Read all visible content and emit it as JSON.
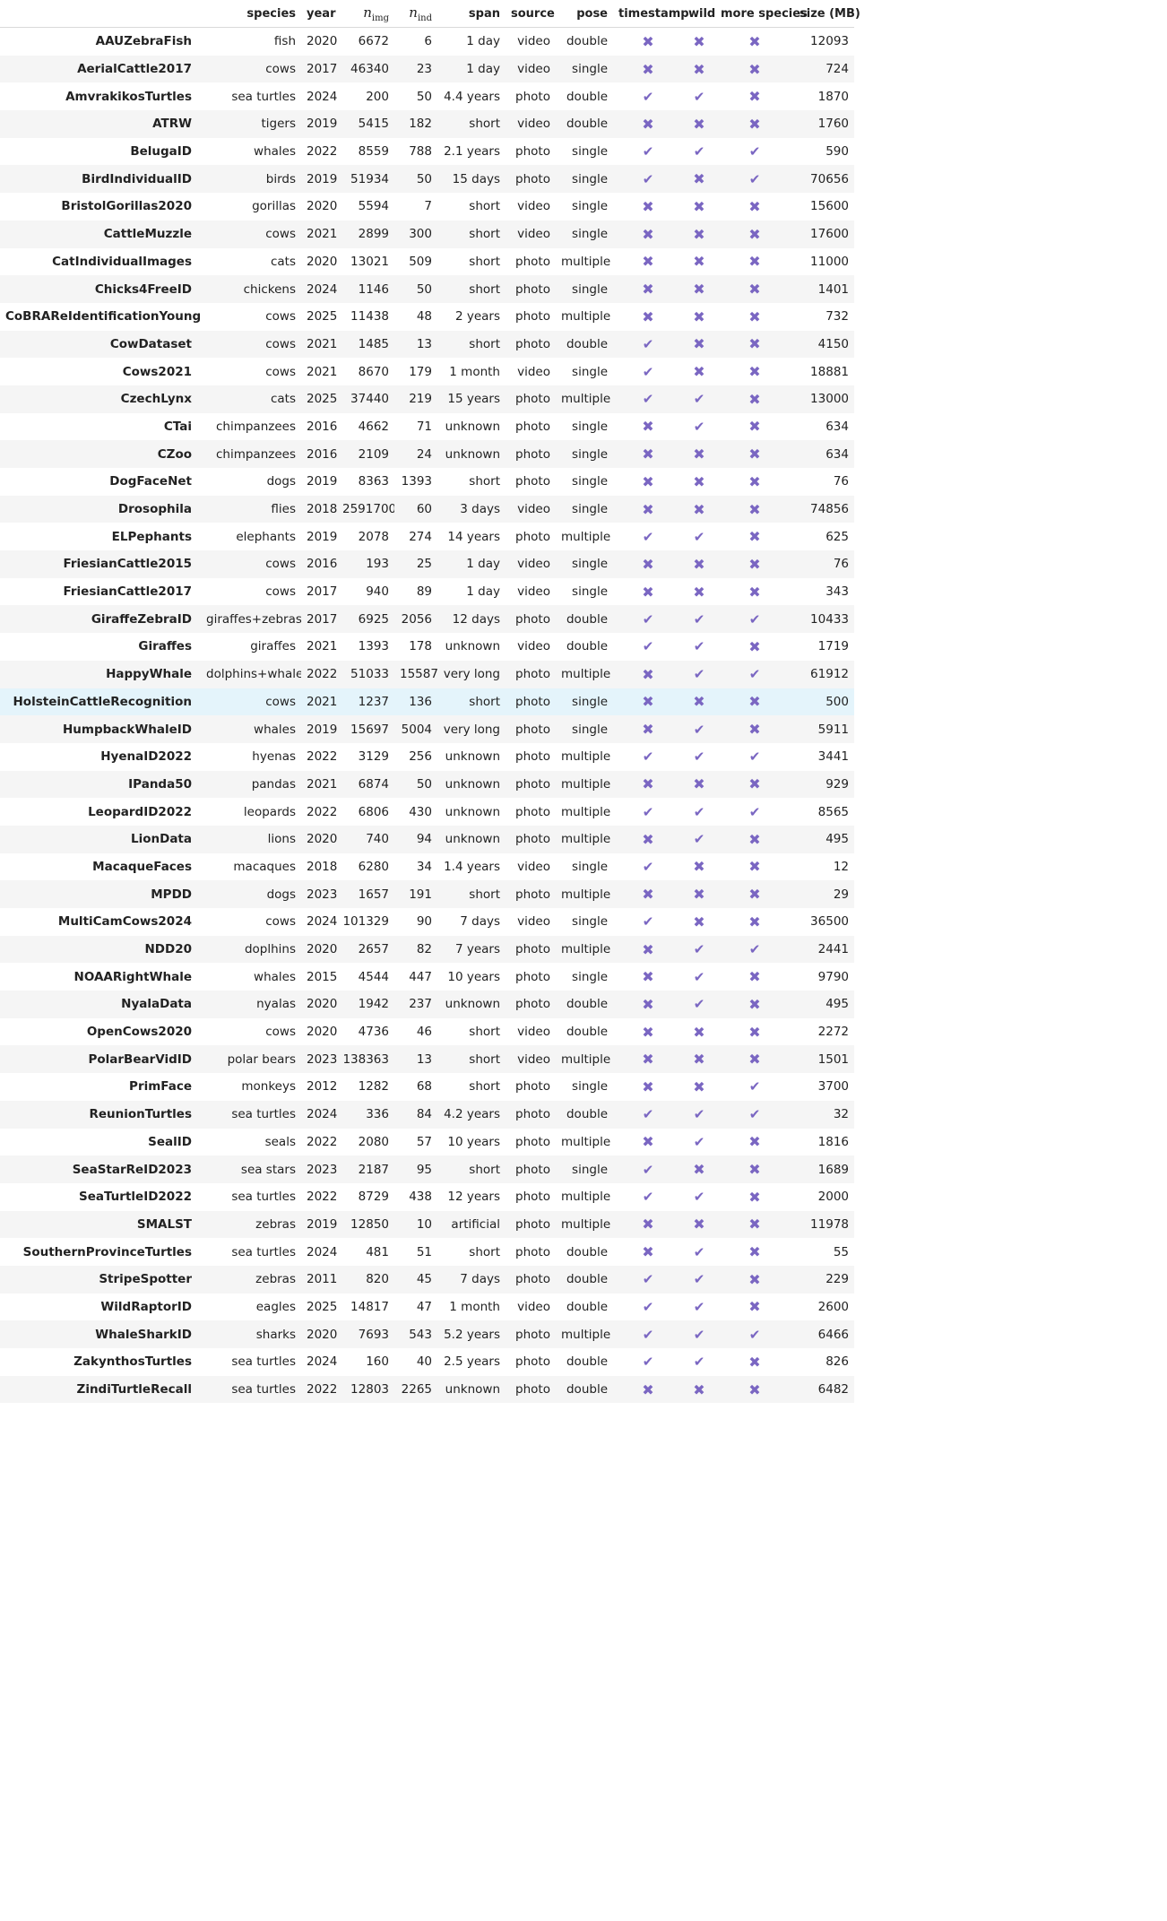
{
  "table": {
    "columns": [
      {
        "key": "name",
        "label": ""
      },
      {
        "key": "species",
        "label": "species"
      },
      {
        "key": "year",
        "label": "year"
      },
      {
        "key": "n_img",
        "label": "n",
        "sub": "img"
      },
      {
        "key": "n_ind",
        "label": "n",
        "sub": "ind"
      },
      {
        "key": "span",
        "label": "span"
      },
      {
        "key": "source",
        "label": "source"
      },
      {
        "key": "pose",
        "label": "pose"
      },
      {
        "key": "timestamp",
        "label": "timestamp"
      },
      {
        "key": "wild",
        "label": "wild"
      },
      {
        "key": "more_species",
        "label": "more species"
      },
      {
        "key": "size_mb",
        "label": "size (MB)"
      }
    ],
    "highlight_row": "HolsteinCattleRecognition",
    "mark_color": "#7a66c2",
    "check_glyph": "✔",
    "cross_glyph": "✖",
    "rows": [
      [
        "AAUZebraFish",
        "fish",
        "2020",
        "6672",
        "6",
        "1 day",
        "video",
        "double",
        false,
        false,
        false,
        "12093"
      ],
      [
        "AerialCattle2017",
        "cows",
        "2017",
        "46340",
        "23",
        "1 day",
        "video",
        "single",
        false,
        false,
        false,
        "724"
      ],
      [
        "AmvrakikosTurtles",
        "sea turtles",
        "2024",
        "200",
        "50",
        "4.4 years",
        "photo",
        "double",
        true,
        true,
        false,
        "1870"
      ],
      [
        "ATRW",
        "tigers",
        "2019",
        "5415",
        "182",
        "short",
        "video",
        "double",
        false,
        false,
        false,
        "1760"
      ],
      [
        "BelugaID",
        "whales",
        "2022",
        "8559",
        "788",
        "2.1 years",
        "photo",
        "single",
        true,
        true,
        true,
        "590"
      ],
      [
        "BirdIndividualID",
        "birds",
        "2019",
        "51934",
        "50",
        "15 days",
        "photo",
        "single",
        true,
        false,
        true,
        "70656"
      ],
      [
        "BristolGorillas2020",
        "gorillas",
        "2020",
        "5594",
        "7",
        "short",
        "video",
        "single",
        false,
        false,
        false,
        "15600"
      ],
      [
        "CattleMuzzle",
        "cows",
        "2021",
        "2899",
        "300",
        "short",
        "video",
        "single",
        false,
        false,
        false,
        "17600"
      ],
      [
        "CatIndividualImages",
        "cats",
        "2020",
        "13021",
        "509",
        "short",
        "photo",
        "multiple",
        false,
        false,
        false,
        "11000"
      ],
      [
        "Chicks4FreeID",
        "chickens",
        "2024",
        "1146",
        "50",
        "short",
        "photo",
        "single",
        false,
        false,
        false,
        "1401"
      ],
      [
        "CoBRAReIdentificationYoungstock",
        "cows",
        "2025",
        "11438",
        "48",
        "2 years",
        "photo",
        "multiple",
        false,
        false,
        false,
        "732"
      ],
      [
        "CowDataset",
        "cows",
        "2021",
        "1485",
        "13",
        "short",
        "photo",
        "double",
        true,
        false,
        false,
        "4150"
      ],
      [
        "Cows2021",
        "cows",
        "2021",
        "8670",
        "179",
        "1 month",
        "video",
        "single",
        true,
        false,
        false,
        "18881"
      ],
      [
        "CzechLynx",
        "cats",
        "2025",
        "37440",
        "219",
        "15 years",
        "photo",
        "multiple",
        true,
        true,
        false,
        "13000"
      ],
      [
        "CTai",
        "chimpanzees",
        "2016",
        "4662",
        "71",
        "unknown",
        "photo",
        "single",
        false,
        true,
        false,
        "634"
      ],
      [
        "CZoo",
        "chimpanzees",
        "2016",
        "2109",
        "24",
        "unknown",
        "photo",
        "single",
        false,
        false,
        false,
        "634"
      ],
      [
        "DogFaceNet",
        "dogs",
        "2019",
        "8363",
        "1393",
        "short",
        "photo",
        "single",
        false,
        false,
        false,
        "76"
      ],
      [
        "Drosophila",
        "flies",
        "2018",
        "2591700",
        "60",
        "3 days",
        "video",
        "single",
        false,
        false,
        false,
        "74856"
      ],
      [
        "ELPephants",
        "elephants",
        "2019",
        "2078",
        "274",
        "14 years",
        "photo",
        "multiple",
        true,
        true,
        false,
        "625"
      ],
      [
        "FriesianCattle2015",
        "cows",
        "2016",
        "193",
        "25",
        "1 day",
        "video",
        "single",
        false,
        false,
        false,
        "76"
      ],
      [
        "FriesianCattle2017",
        "cows",
        "2017",
        "940",
        "89",
        "1 day",
        "video",
        "single",
        false,
        false,
        false,
        "343"
      ],
      [
        "GiraffeZebraID",
        "giraffes+zebras",
        "2017",
        "6925",
        "2056",
        "12 days",
        "photo",
        "double",
        true,
        true,
        true,
        "10433"
      ],
      [
        "Giraffes",
        "giraffes",
        "2021",
        "1393",
        "178",
        "unknown",
        "video",
        "double",
        true,
        true,
        false,
        "1719"
      ],
      [
        "HappyWhale",
        "dolphins+whales",
        "2022",
        "51033",
        "15587",
        "very long",
        "photo",
        "multiple",
        false,
        true,
        true,
        "61912"
      ],
      [
        "HolsteinCattleRecognition",
        "cows",
        "2021",
        "1237",
        "136",
        "short",
        "photo",
        "single",
        false,
        false,
        false,
        "500"
      ],
      [
        "HumpbackWhaleID",
        "whales",
        "2019",
        "15697",
        "5004",
        "very long",
        "photo",
        "single",
        false,
        true,
        false,
        "5911"
      ],
      [
        "HyenaID2022",
        "hyenas",
        "2022",
        "3129",
        "256",
        "unknown",
        "photo",
        "multiple",
        true,
        true,
        true,
        "3441"
      ],
      [
        "IPanda50",
        "pandas",
        "2021",
        "6874",
        "50",
        "unknown",
        "photo",
        "multiple",
        false,
        false,
        false,
        "929"
      ],
      [
        "LeopardID2022",
        "leopards",
        "2022",
        "6806",
        "430",
        "unknown",
        "photo",
        "multiple",
        true,
        true,
        true,
        "8565"
      ],
      [
        "LionData",
        "lions",
        "2020",
        "740",
        "94",
        "unknown",
        "photo",
        "multiple",
        false,
        true,
        false,
        "495"
      ],
      [
        "MacaqueFaces",
        "macaques",
        "2018",
        "6280",
        "34",
        "1.4 years",
        "video",
        "single",
        true,
        false,
        false,
        "12"
      ],
      [
        "MPDD",
        "dogs",
        "2023",
        "1657",
        "191",
        "short",
        "photo",
        "multiple",
        false,
        false,
        false,
        "29"
      ],
      [
        "MultiCamCows2024",
        "cows",
        "2024",
        "101329",
        "90",
        "7 days",
        "video",
        "single",
        true,
        false,
        false,
        "36500"
      ],
      [
        "NDD20",
        "doplhins",
        "2020",
        "2657",
        "82",
        "7 years",
        "photo",
        "multiple",
        false,
        true,
        true,
        "2441"
      ],
      [
        "NOAARightWhale",
        "whales",
        "2015",
        "4544",
        "447",
        "10 years",
        "photo",
        "single",
        false,
        true,
        false,
        "9790"
      ],
      [
        "NyalaData",
        "nyalas",
        "2020",
        "1942",
        "237",
        "unknown",
        "photo",
        "double",
        false,
        true,
        false,
        "495"
      ],
      [
        "OpenCows2020",
        "cows",
        "2020",
        "4736",
        "46",
        "short",
        "video",
        "double",
        false,
        false,
        false,
        "2272"
      ],
      [
        "PolarBearVidID",
        "polar bears",
        "2023",
        "138363",
        "13",
        "short",
        "video",
        "multiple",
        false,
        false,
        false,
        "1501"
      ],
      [
        "PrimFace",
        "monkeys",
        "2012",
        "1282",
        "68",
        "short",
        "photo",
        "single",
        false,
        false,
        true,
        "3700"
      ],
      [
        "ReunionTurtles",
        "sea turtles",
        "2024",
        "336",
        "84",
        "4.2 years",
        "photo",
        "double",
        true,
        true,
        true,
        "32"
      ],
      [
        "SealID",
        "seals",
        "2022",
        "2080",
        "57",
        "10 years",
        "photo",
        "multiple",
        false,
        true,
        false,
        "1816"
      ],
      [
        "SeaStarReID2023",
        "sea stars",
        "2023",
        "2187",
        "95",
        "short",
        "photo",
        "single",
        true,
        false,
        false,
        "1689"
      ],
      [
        "SeaTurtleID2022",
        "sea turtles",
        "2022",
        "8729",
        "438",
        "12 years",
        "photo",
        "multiple",
        true,
        true,
        false,
        "2000"
      ],
      [
        "SMALST",
        "zebras",
        "2019",
        "12850",
        "10",
        "artificial",
        "photo",
        "multiple",
        false,
        false,
        false,
        "11978"
      ],
      [
        "SouthernProvinceTurtles",
        "sea turtles",
        "2024",
        "481",
        "51",
        "short",
        "photo",
        "double",
        false,
        true,
        false,
        "55"
      ],
      [
        "StripeSpotter",
        "zebras",
        "2011",
        "820",
        "45",
        "7 days",
        "photo",
        "double",
        true,
        true,
        false,
        "229"
      ],
      [
        "WildRaptorID",
        "eagles",
        "2025",
        "14817",
        "47",
        "1 month",
        "video",
        "double",
        true,
        true,
        false,
        "2600"
      ],
      [
        "WhaleSharkID",
        "sharks",
        "2020",
        "7693",
        "543",
        "5.2 years",
        "photo",
        "multiple",
        true,
        true,
        true,
        "6466"
      ],
      [
        "ZakynthosTurtles",
        "sea turtles",
        "2024",
        "160",
        "40",
        "2.5 years",
        "photo",
        "double",
        true,
        true,
        false,
        "826"
      ],
      [
        "ZindiTurtleRecall",
        "sea turtles",
        "2022",
        "12803",
        "2265",
        "unknown",
        "photo",
        "double",
        false,
        false,
        false,
        "6482"
      ]
    ]
  }
}
